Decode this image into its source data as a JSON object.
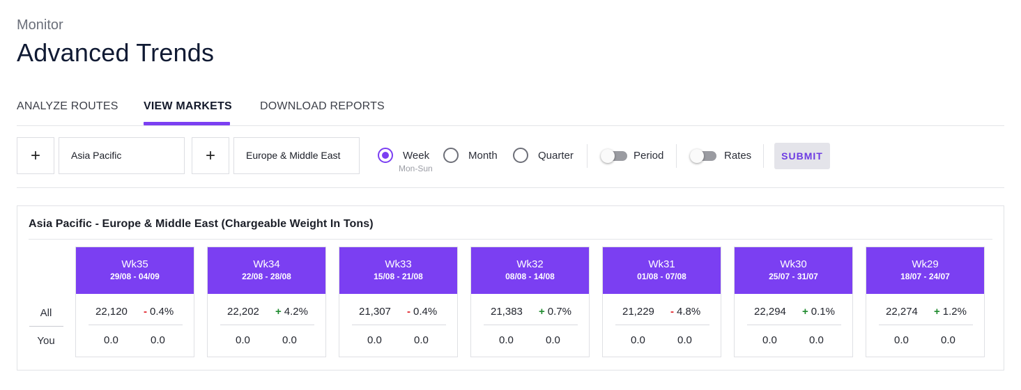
{
  "header": {
    "subtitle": "Monitor",
    "title": "Advanced Trends"
  },
  "tabs": [
    {
      "label": "ANALYZE ROUTES",
      "active": false
    },
    {
      "label": "VIEW MARKETS",
      "active": true
    },
    {
      "label": "DOWNLOAD REPORTS",
      "active": false
    }
  ],
  "filters": {
    "add_icon": "plus-icon",
    "origin": "Asia Pacific",
    "destination": "Europe & Middle East",
    "period_options": [
      {
        "label": "Week",
        "sublabel": "Mon-Sun",
        "selected": true
      },
      {
        "label": "Month",
        "selected": false
      },
      {
        "label": "Quarter",
        "selected": false
      }
    ],
    "toggles": [
      {
        "label": "Period",
        "on": false
      },
      {
        "label": "Rates",
        "on": false
      }
    ],
    "submit_label": "SUBMIT"
  },
  "panel": {
    "title": "Asia Pacific - Europe & Middle East (Chargeable Weight In Tons)",
    "row_labels": {
      "all": "All",
      "you": "You"
    },
    "weeks": [
      {
        "name": "Wk35",
        "range": "29/08 - 04/09",
        "all": "22,120",
        "change_sign": "-",
        "change": "0.4%",
        "you_a": "0.0",
        "you_b": "0.0"
      },
      {
        "name": "Wk34",
        "range": "22/08 - 28/08",
        "all": "22,202",
        "change_sign": "+",
        "change": "4.2%",
        "you_a": "0.0",
        "you_b": "0.0"
      },
      {
        "name": "Wk33",
        "range": "15/08 - 21/08",
        "all": "21,307",
        "change_sign": "-",
        "change": "0.4%",
        "you_a": "0.0",
        "you_b": "0.0"
      },
      {
        "name": "Wk32",
        "range": "08/08 - 14/08",
        "all": "21,383",
        "change_sign": "+",
        "change": "0.7%",
        "you_a": "0.0",
        "you_b": "0.0"
      },
      {
        "name": "Wk31",
        "range": "01/08 - 07/08",
        "all": "21,229",
        "change_sign": "-",
        "change": "4.8%",
        "you_a": "0.0",
        "you_b": "0.0"
      },
      {
        "name": "Wk30",
        "range": "25/07 - 31/07",
        "all": "22,294",
        "change_sign": "+",
        "change": "0.1%",
        "you_a": "0.0",
        "you_b": "0.0"
      },
      {
        "name": "Wk29",
        "range": "18/07 - 24/07",
        "all": "22,274",
        "change_sign": "+",
        "change": "1.2%",
        "you_a": "0.0",
        "you_b": "0.0"
      }
    ]
  },
  "colors": {
    "accent": "#7b3ff2",
    "decrease": "#e0242b",
    "increase": "#1e8a2e"
  }
}
